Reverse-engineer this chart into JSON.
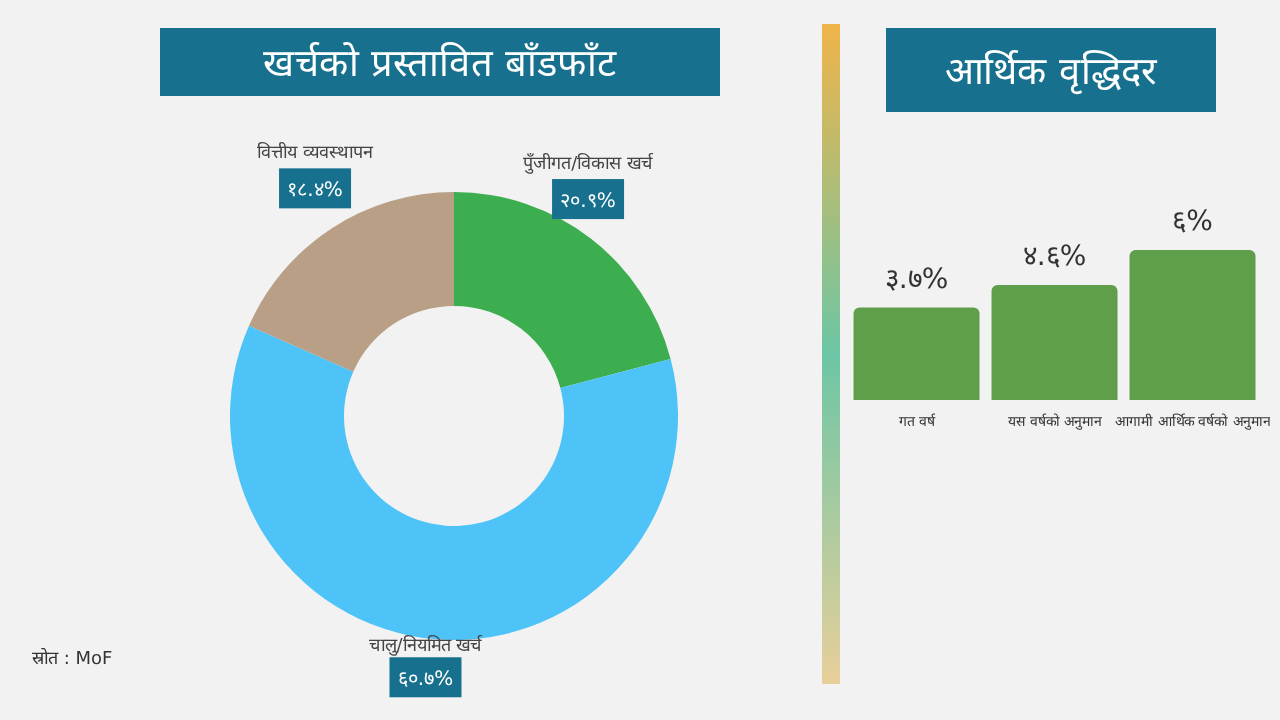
{
  "chart_data": [
    {
      "type": "donut",
      "title": "खर्चको प्रस्तावित बाँडफाँट",
      "categories": [
        "पुँजीगत/विकास खर्च",
        "चालु/नियमित खर्च",
        "वित्तीय व्यवस्थापन"
      ],
      "values": [
        20.9,
        60.7,
        18.4
      ],
      "colors": [
        "#3dae4f",
        "#4dc3f7",
        "#b89f86"
      ],
      "value_labels": [
        "२०.९%",
        "६०.७%",
        "१८.४%"
      ],
      "annotations": [
        "स्रोत : MoF"
      ]
    },
    {
      "type": "bar",
      "title": "आर्थिक वृद्धिदर",
      "categories": [
        "गत वर्ष",
        "यस वर्षको अनुमान",
        "आगामी आर्थिक वर्षको अनुमान"
      ],
      "values": [
        3.7,
        4.6,
        6
      ],
      "color": "#5f9f4c",
      "value_labels": [
        "३.७%",
        "४.६%",
        "६%"
      ]
    }
  ]
}
